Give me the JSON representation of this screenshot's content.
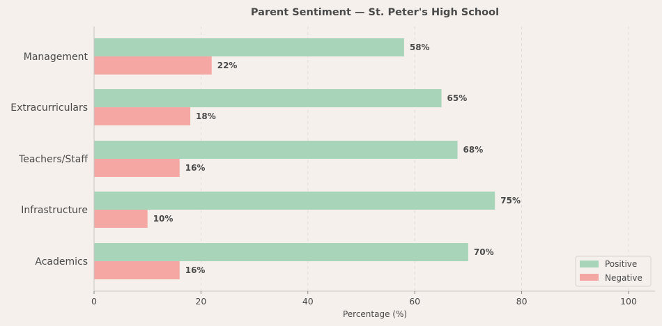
{
  "chart_data": {
    "type": "bar",
    "orientation": "horizontal",
    "title": "Parent Sentiment — St. Peter's High School",
    "xlabel": "Percentage (%)",
    "ylabel": "",
    "xlim": [
      0,
      105
    ],
    "xticks": [
      0,
      20,
      40,
      60,
      80,
      100
    ],
    "grid": "x-dashed",
    "legend_position": "bottom-right",
    "categories": [
      "Management",
      "Extracurriculars",
      "Teachers/Staff",
      "Infrastructure",
      "Academics"
    ],
    "series": [
      {
        "name": "Positive",
        "color": "#a8d5b9",
        "values": [
          58,
          65,
          68,
          75,
          70
        ],
        "labels": [
          "58%",
          "65%",
          "68%",
          "75%",
          "70%"
        ]
      },
      {
        "name": "Negative",
        "color": "#f5a8a3",
        "values": [
          22,
          18,
          16,
          10,
          16
        ],
        "labels": [
          "22%",
          "18%",
          "16%",
          "10%",
          "16%"
        ]
      }
    ]
  }
}
